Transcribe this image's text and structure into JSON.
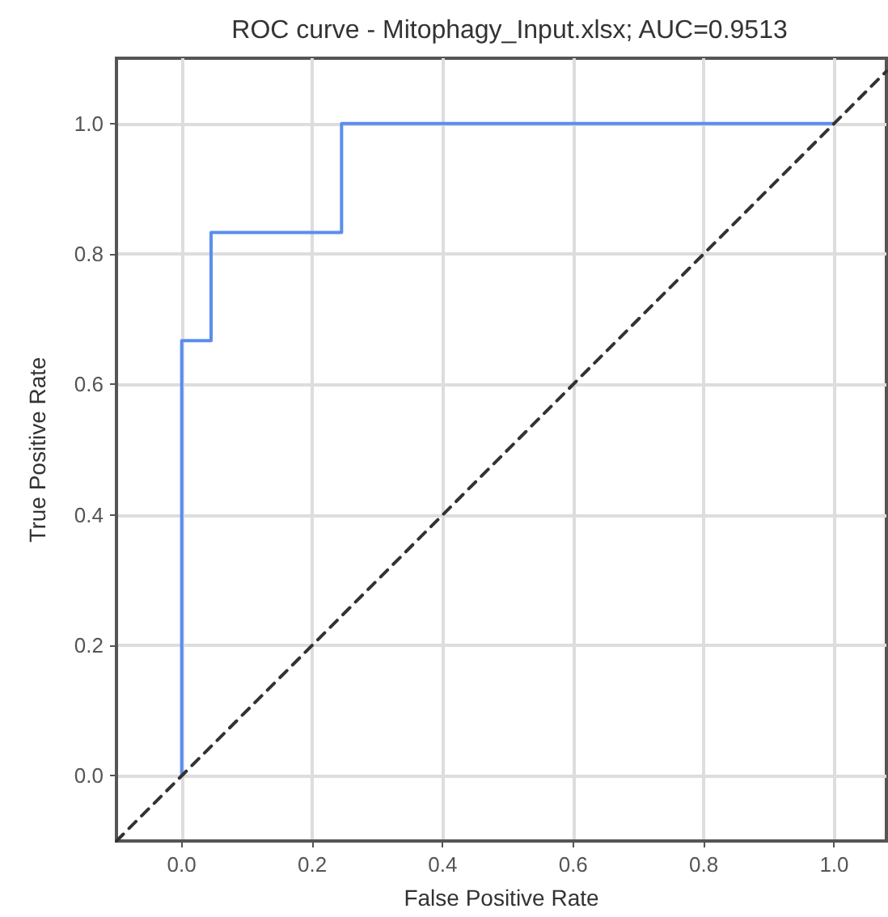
{
  "chart_data": {
    "type": "line",
    "title": "ROC curve - Mitophagy_Input.xlsx; AUC=0.9513",
    "xlabel": "False Positive Rate",
    "ylabel": "True Positive Rate",
    "xlim": [
      -0.1,
      1.08
    ],
    "ylim": [
      -0.1,
      1.1
    ],
    "xticks": [
      {
        "value": 0,
        "label": "0.0"
      },
      0.2,
      0.4,
      0.6,
      0.8,
      {
        "value": 1,
        "label": "1.0"
      }
    ],
    "yticks": [
      {
        "value": 0,
        "label": "0.0"
      },
      0.2,
      0.4,
      0.6,
      0.8,
      {
        "value": 1,
        "label": "1.0"
      }
    ],
    "grid": true,
    "marker": "none",
    "series": [
      {
        "color": "#5b8def",
        "x": [
          0,
          0,
          0.045,
          0.045,
          0.245,
          0.245,
          1
        ],
        "values": [
          0,
          0.667,
          0.667,
          0.833,
          0.833,
          1,
          1
        ],
        "line_style": "solid"
      },
      {
        "color": "#333333",
        "x": [
          -0.1,
          1.08
        ],
        "values": [
          -0.1,
          1.08
        ],
        "line_style": "dashed"
      }
    ]
  }
}
